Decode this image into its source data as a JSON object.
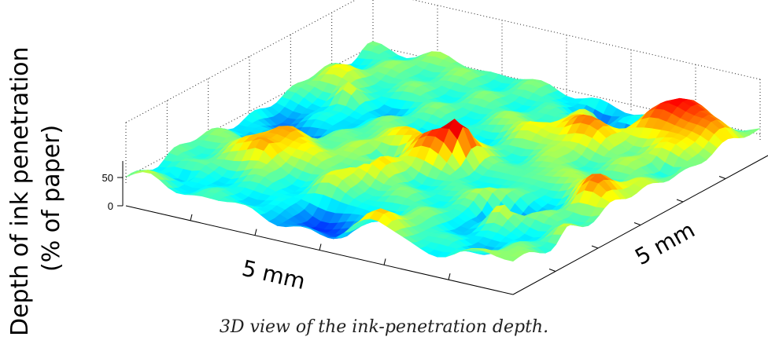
{
  "y_axis": {
    "label_line1": "Depth of ink penetration",
    "label_line2": "(% of paper)"
  },
  "chart_data": {
    "type": "surface",
    "zlabel": "Depth of ink penetration (% of paper)",
    "z_ticks": [
      "0",
      "50"
    ],
    "zlim": [
      0,
      100
    ],
    "x_extent_label": "5 mm",
    "y_extent_label": "5 mm",
    "grid": true,
    "colormap": "jet",
    "colormap_stops": [
      "#00007f",
      "#0000ff",
      "#007fff",
      "#00ffff",
      "#7fff7f",
      "#ffff00",
      "#ff7f00",
      "#ff0000",
      "#7f0000"
    ],
    "z_mean_approx": 30
  },
  "caption": "3D view of the ink-penetration depth."
}
